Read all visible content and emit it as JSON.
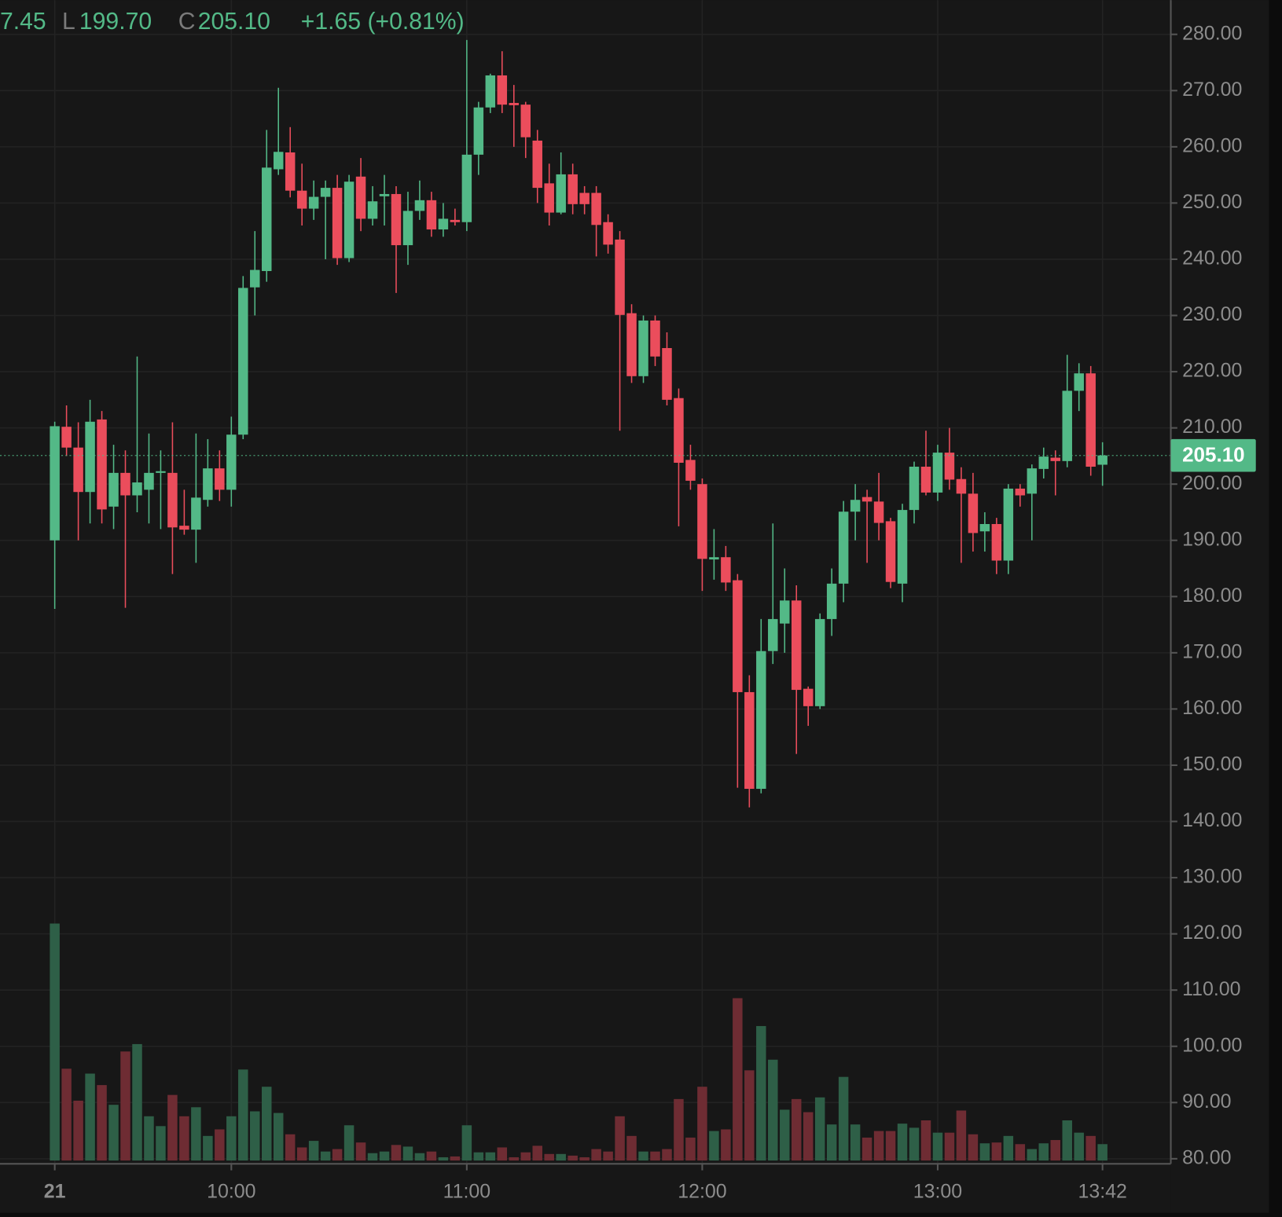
{
  "chart_data": {
    "type": "candlestick",
    "header": {
      "high_fragment": "7.45",
      "low_label": "L",
      "low": "199.70",
      "close_label": "C",
      "close": "205.10",
      "change": "+1.65 (+0.81%)"
    },
    "up_color": "#53b987",
    "down_color": "#eb4d5c",
    "volume_up_color": "#2e5f47",
    "volume_down_color": "#6e2c33",
    "grid": true,
    "open": [
      190,
      210.2,
      206.5,
      198.6,
      211.5,
      196,
      202,
      198,
      199,
      202,
      202,
      192.6,
      191.9,
      197.2,
      202.8,
      199,
      208.8,
      235,
      237.9,
      256,
      259,
      252.2,
      249,
      251.1,
      252.7,
      240.2,
      254.7,
      247.2,
      251.2,
      251.6,
      242.5,
      248.6,
      250.5,
      245.3,
      247,
      246.6,
      258.6,
      267,
      272.7,
      267.8,
      267.5,
      261.1,
      253.5,
      248.3,
      255.1,
      251.8,
      251.8,
      246.6,
      243.5,
      230.4,
      219.2,
      229.1,
      224.2,
      215.3,
      204.3,
      200,
      186.6,
      187,
      182.9,
      163,
      145.8,
      170.3,
      175.2,
      179.3,
      163.6,
      160.5,
      176,
      182.3,
      195.1,
      197.7,
      196.9,
      193.4,
      182.3,
      195.4,
      203.1,
      198.5,
      205.6,
      200.9,
      198.3,
      191.6,
      192.9,
      186.4,
      199.2,
      198.3,
      202.7,
      204.7,
      204.1,
      216.6,
      219.7,
      203.45
    ],
    "high": [
      211.1,
      214,
      211,
      215,
      213,
      207,
      206,
      222.7,
      209,
      206,
      211,
      199,
      209,
      208,
      206,
      212,
      237,
      245,
      263,
      270.5,
      263.5,
      257,
      254,
      254,
      255,
      255,
      258,
      253,
      255,
      253,
      252,
      254,
      252,
      250,
      249,
      279,
      268,
      273,
      277,
      271,
      268,
      263,
      257,
      259,
      257,
      253,
      253,
      248,
      245,
      232,
      230,
      230,
      227,
      217,
      207,
      201,
      192,
      189,
      184,
      166,
      176,
      193,
      185,
      182,
      164,
      177,
      185,
      197,
      200,
      199,
      202,
      194,
      196.5,
      204,
      209.5,
      207,
      210,
      203,
      202,
      195,
      194,
      200,
      200,
      203.5,
      206.5,
      206,
      223,
      221.5,
      221,
      207.45
    ],
    "low": [
      177.8,
      205,
      190,
      193,
      193,
      192,
      178,
      195,
      193,
      192,
      184,
      191,
      186,
      196,
      197,
      196,
      208,
      230,
      236,
      255,
      251,
      246,
      247,
      240,
      239,
      239.5,
      245,
      246,
      246,
      234,
      239,
      247,
      244,
      244,
      246,
      245,
      255,
      266,
      266,
      260,
      258,
      250,
      246,
      248,
      248,
      248,
      240.5,
      241,
      209.5,
      218,
      218,
      221,
      214,
      192.5,
      199,
      181,
      183,
      181,
      146,
      142.5,
      145,
      168,
      170,
      152,
      157,
      160,
      173,
      179,
      190,
      186,
      190,
      181.5,
      179,
      193,
      198,
      197,
      199,
      186,
      188,
      188,
      184,
      184,
      196,
      190,
      201,
      198,
      203,
      213,
      201.5,
      199.7
    ],
    "close": [
      210.3,
      206.5,
      198.6,
      211.1,
      195.5,
      202,
      198,
      200.3,
      202,
      202.3,
      192.3,
      191.9,
      197.6,
      202.8,
      199,
      208.8,
      234.9,
      238.1,
      256.3,
      259.1,
      252.2,
      249,
      251.1,
      252.7,
      240.2,
      253.8,
      247.2,
      250.3,
      251.6,
      242.5,
      248.6,
      250.5,
      245.3,
      247.2,
      246.6,
      258.6,
      267,
      272.7,
      267.5,
      267.4,
      261.7,
      252.7,
      248.3,
      255.1,
      249.8,
      249.8,
      246.1,
      242.6,
      230.1,
      219.2,
      229.1,
      222.7,
      215,
      203.8,
      200.6,
      186.7,
      187,
      182.5,
      163,
      145.8,
      170.3,
      176,
      179.3,
      163.4,
      160.5,
      176,
      182.3,
      195.1,
      197.2,
      196.9,
      193.1,
      182.6,
      195.4,
      203.1,
      198.5,
      205.6,
      200.8,
      198.3,
      191.3,
      192.9,
      186.4,
      199.2,
      198,
      202.8,
      204.9,
      204.1,
      216.6,
      219.7,
      203.1,
      205.1
    ],
    "volume": [
      289,
      112,
      73,
      106,
      92,
      68,
      133,
      142,
      54,
      42,
      80,
      54,
      65,
      30,
      38,
      54,
      111,
      60,
      90,
      58,
      32,
      16,
      24,
      11,
      14,
      43,
      22,
      9,
      11,
      19,
      17,
      9,
      11,
      4,
      5,
      43,
      10,
      10,
      16,
      4,
      10,
      18,
      8,
      8,
      6,
      4,
      14,
      11,
      54,
      30,
      11,
      11,
      14,
      75,
      28,
      90,
      36,
      38,
      198,
      110,
      164,
      123,
      62,
      75,
      59,
      77,
      44,
      102,
      44,
      28,
      36,
      36,
      45,
      40,
      49,
      34,
      34,
      61,
      32,
      21,
      22,
      30,
      20,
      14,
      21,
      25,
      49,
      34,
      30,
      20
    ],
    "xlim": [
      -4.65,
      94.8
    ],
    "xticks": [
      {
        "value": 0,
        "label": "21"
      },
      {
        "value": 15,
        "label": "10:00"
      },
      {
        "value": 35,
        "label": "11:00"
      },
      {
        "value": 55,
        "label": "12:00"
      },
      {
        "value": 75,
        "label": "13:00"
      },
      {
        "value": 89,
        "label": "13:42"
      }
    ],
    "ylim": [
      79.1,
      286.1
    ],
    "yticks": [
      {
        "value": 280,
        "label": "280.00"
      },
      {
        "value": 270,
        "label": "270.00"
      },
      {
        "value": 260,
        "label": "260.00"
      },
      {
        "value": 250,
        "label": "250.00"
      },
      {
        "value": 240,
        "label": "240.00"
      },
      {
        "value": 230,
        "label": "230.00"
      },
      {
        "value": 220,
        "label": "220.00"
      },
      {
        "value": 210,
        "label": "210.00"
      },
      {
        "value": 200,
        "label": "200.00"
      },
      {
        "value": 190,
        "label": "190.00"
      },
      {
        "value": 180,
        "label": "180.00"
      },
      {
        "value": 170,
        "label": "170.00"
      },
      {
        "value": 160,
        "label": "160.00"
      },
      {
        "value": 150,
        "label": "150.00"
      },
      {
        "value": 140,
        "label": "140.00"
      },
      {
        "value": 130,
        "label": "130.00"
      },
      {
        "value": 120,
        "label": "120.00"
      },
      {
        "value": 110,
        "label": "110.00"
      },
      {
        "value": 100,
        "label": "100.00"
      },
      {
        "value": 90,
        "label": "90.00"
      },
      {
        "value": 80,
        "label": "80.00"
      }
    ],
    "last_price": {
      "value": 205.1,
      "label": "205.10"
    }
  }
}
